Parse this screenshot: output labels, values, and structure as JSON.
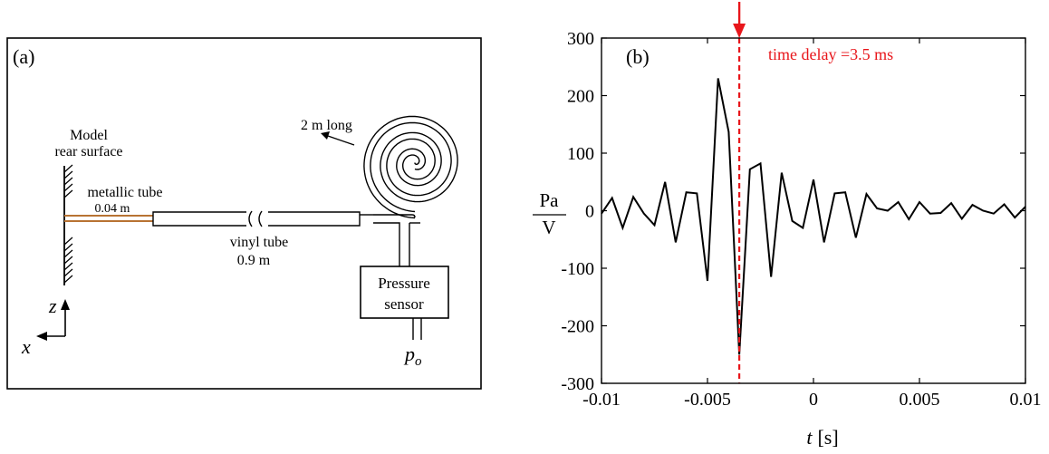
{
  "diagram": {
    "panel_label": "(a)",
    "model_label_line1": "Model",
    "model_label_line2": "rear surface",
    "metallic_tube_label": "metallic tube",
    "metallic_tube_length": "0.04 m",
    "vinyl_tube_label": "vinyl tube",
    "vinyl_tube_length": "0.9 m",
    "coil_label": "2 m long",
    "sensor_line1": "Pressure",
    "sensor_line2": "sensor",
    "po_symbol": "p",
    "po_subscript": "o",
    "axis_z": "z",
    "axis_x": "x",
    "metallic_tube_color": "#b87333"
  },
  "chart": {
    "panel_label": "(b)",
    "annotation": "time delay =3.5 ms",
    "annotation_color": "#e8161b",
    "ylabel_numerator": "Pa",
    "ylabel_denominator": "V",
    "xlabel_symbol": "t",
    "xlabel_unit": "[s]"
  },
  "chart_data": {
    "type": "line",
    "xlim": [
      -0.01,
      0.01
    ],
    "ylim": [
      -300,
      300
    ],
    "xticks": [
      -0.01,
      -0.005,
      0,
      0.005,
      0.01
    ],
    "xtick_labels": [
      "-0.01",
      "-0.005",
      "0",
      "0.005",
      "0.01"
    ],
    "yticks": [
      -300,
      -200,
      -100,
      0,
      100,
      200,
      300
    ],
    "ytick_labels": [
      "-300",
      "-200",
      "-100",
      "0",
      "100",
      "200",
      "300"
    ],
    "grid": false,
    "line_color": "#000000",
    "marker_line_x": -0.0035,
    "series": [
      {
        "x": [
          -0.01,
          -0.0095,
          -0.009,
          -0.0085,
          -0.008,
          -0.0075,
          -0.007,
          -0.0065,
          -0.006,
          -0.0055,
          -0.005,
          -0.0045,
          -0.004,
          -0.0035,
          -0.003,
          -0.0025,
          -0.002,
          -0.0015,
          -0.001,
          -0.0005,
          0,
          0.0005,
          0.001,
          0.0015,
          0.002,
          0.0025,
          0.003,
          0.0035,
          0.004,
          0.0045,
          0.005,
          0.0055,
          0.006,
          0.0065,
          0.007,
          0.0075,
          0.008,
          0.0085,
          0.009,
          0.0095,
          0.01
        ],
        "y": [
          -5,
          22,
          -30,
          24,
          -5,
          -25,
          50,
          -55,
          32,
          30,
          -122,
          230,
          137,
          -250,
          72,
          82,
          -115,
          66,
          -18,
          -30,
          54,
          -55,
          30,
          32,
          -47,
          29,
          4,
          0,
          15,
          -15,
          15,
          -5,
          -4,
          13,
          -14,
          10,
          0,
          -5,
          11,
          -12,
          7
        ]
      }
    ]
  }
}
